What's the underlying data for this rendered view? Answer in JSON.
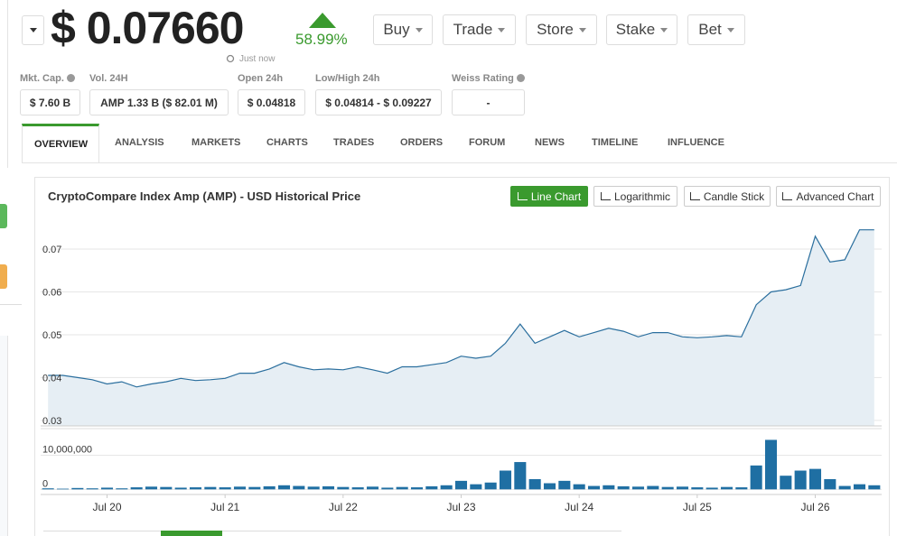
{
  "header": {
    "price": "$ 0.07660",
    "change": "58.99%",
    "updated": "Just now",
    "menus": [
      "Buy",
      "Trade",
      "Store",
      "Stake",
      "Bet"
    ]
  },
  "stats": [
    {
      "label": "Mkt. Cap.",
      "value": "$ 7.60 B"
    },
    {
      "label": "Vol. 24H",
      "value": "AMP 1.33 B ($ 82.01 M)"
    },
    {
      "label": "Open 24h",
      "value": "$ 0.04818"
    },
    {
      "label": "Low/High 24h",
      "value": "$ 0.04814 - $ 0.09227"
    },
    {
      "label": "Weiss Rating",
      "value": "-"
    }
  ],
  "tabs": [
    "OVERVIEW",
    "ANALYSIS",
    "MARKETS",
    "CHARTS",
    "TRADES",
    "ORDERS",
    "FORUM",
    "NEWS",
    "TIMELINE",
    "INFLUENCE"
  ],
  "chart_data": {
    "type": "line",
    "title": "CryptoCompare Index Amp (AMP) - USD Historical Price",
    "buttons": [
      "Line Chart",
      "Logarithmic",
      "Candle Stick",
      "Advanced Chart"
    ],
    "categories": [
      null,
      null,
      null,
      null,
      "Jul 20",
      null,
      null,
      null,
      null,
      null,
      null,
      null,
      "Jul 21",
      null,
      null,
      null,
      null,
      null,
      null,
      null,
      "Jul 22",
      null,
      null,
      null,
      null,
      null,
      null,
      null,
      "Jul 23",
      null,
      null,
      null,
      null,
      null,
      null,
      null,
      "Jul 24",
      null,
      null,
      null,
      null,
      null,
      null,
      null,
      "Jul 25",
      null,
      null,
      null,
      null,
      null,
      null,
      null,
      "Jul 26",
      null,
      null,
      null,
      null
    ],
    "values": [
      0.0405,
      0.0405,
      0.04,
      0.0395,
      0.0385,
      0.039,
      0.0378,
      0.0385,
      0.039,
      0.0398,
      0.0393,
      0.0395,
      0.0398,
      0.041,
      0.041,
      0.042,
      0.0435,
      0.0425,
      0.0418,
      0.042,
      0.0418,
      0.0425,
      0.0418,
      0.041,
      0.0425,
      0.0425,
      0.043,
      0.0435,
      0.045,
      0.0445,
      0.045,
      0.048,
      0.0525,
      0.048,
      0.0495,
      0.051,
      0.0495,
      0.0505,
      0.0515,
      0.0508,
      0.0495,
      0.0505,
      0.0505,
      0.0495,
      0.0493,
      0.0495,
      0.0498,
      0.0495,
      0.057,
      0.06,
      0.0605,
      0.0615,
      0.073,
      0.067,
      0.0675,
      0.0745,
      0.0745
    ],
    "color": "#2b6f9e",
    "fill": "#e6eef4",
    "ylim": [
      0.0287,
      0.0776
    ],
    "yticks": [
      0.03,
      0.04,
      0.05,
      0.06,
      0.07
    ],
    "grid": true,
    "volume": {
      "type": "bar",
      "color": "#1f6fa3",
      "values": [
        300000,
        200000,
        400000,
        300000,
        500000,
        300000,
        600000,
        800000,
        700000,
        500000,
        600000,
        700000,
        600000,
        800000,
        700000,
        900000,
        1200000,
        1000000,
        800000,
        900000,
        700000,
        600000,
        800000,
        500000,
        700000,
        600000,
        900000,
        1200000,
        2500000,
        1500000,
        2000000,
        5500000,
        8000000,
        3000000,
        1800000,
        2500000,
        1500000,
        1000000,
        1200000,
        900000,
        800000,
        1000000,
        700000,
        800000,
        600000,
        500000,
        700000,
        600000,
        7000000,
        14500000,
        4000000,
        5500000,
        6000000,
        3000000,
        1000000,
        1500000,
        1200000
      ],
      "ylim": [
        -1500000,
        17000000
      ],
      "yticks": [
        0,
        {
          "value": 10000000,
          "label": "10,000,000"
        }
      ]
    }
  }
}
